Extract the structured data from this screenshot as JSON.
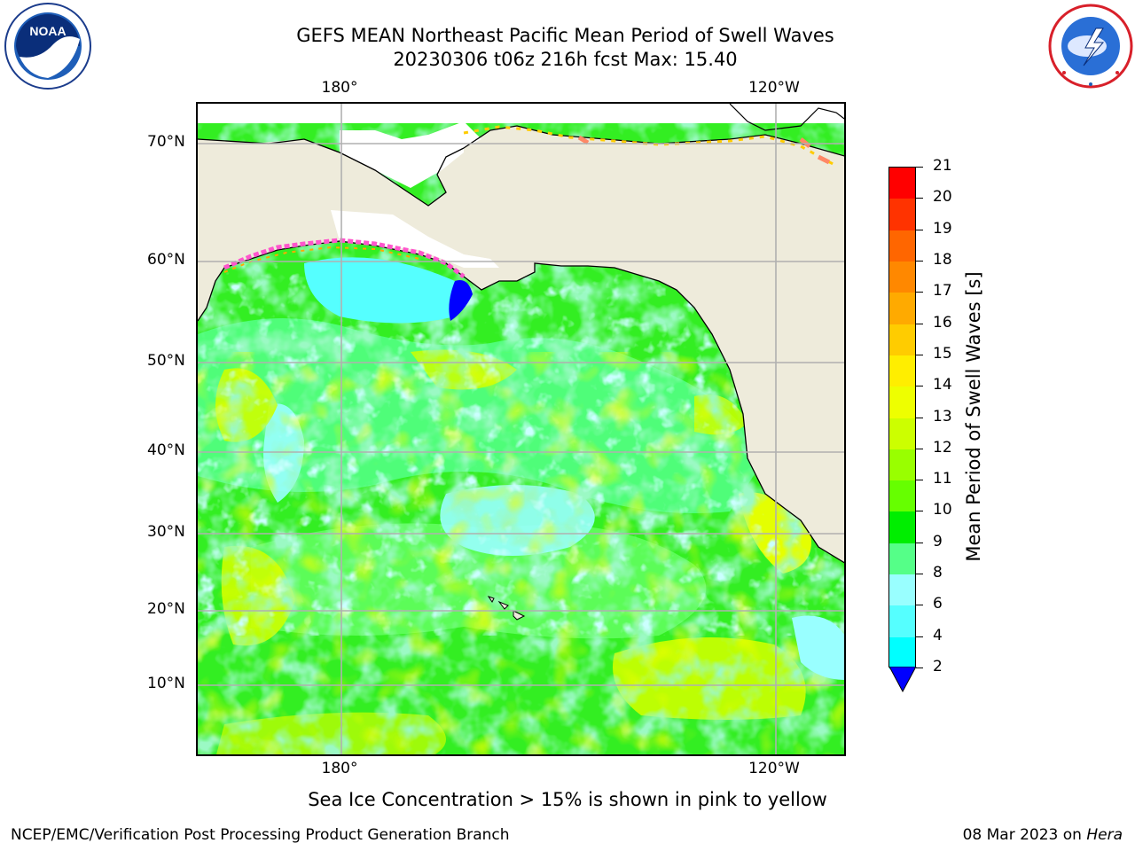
{
  "header": {
    "title_line1": "GEFS MEAN Northeast Pacific Mean Period of Swell Waves",
    "title_line2": "20230306 t06z 216h fcst   Max: 15.40"
  },
  "logos": {
    "left": "noaa-logo",
    "right": "nws-logo",
    "left_text": "NOAA",
    "right_text": "NATIONAL WEATHER SERVICE"
  },
  "map": {
    "lon_labels_top": [
      "180°",
      "120°W"
    ],
    "lon_labels_bottom": [
      "180°",
      "120°W"
    ],
    "lat_labels": [
      "70°N",
      "60°N",
      "50°N",
      "40°N",
      "30°N",
      "20°N",
      "10°N"
    ],
    "colors": {
      "land": "#eeebdb",
      "grid": "#b0b0b0",
      "coast": "#000000"
    }
  },
  "colorbar": {
    "title": "Mean Period of Swell Waves [s]",
    "ticks": [
      "21",
      "20",
      "19",
      "18",
      "17",
      "16",
      "15",
      "14",
      "13",
      "12",
      "11",
      "10",
      "9",
      "8",
      "6",
      "4",
      "2"
    ],
    "colors": [
      "#ff0000",
      "#ff3300",
      "#ff6600",
      "#ff8800",
      "#ffaa00",
      "#ffcc00",
      "#ffee00",
      "#eeff00",
      "#ccff00",
      "#99ff00",
      "#66ff00",
      "#00ee00",
      "#55ff88",
      "#99ffff",
      "#55ffff",
      "#00ffff",
      "#00bbff",
      "#0066ff"
    ],
    "under_color": "#0000ff"
  },
  "footer": {
    "note": "Sea Ice Concentration > 15% is shown in pink to yellow",
    "credit": "NCEP/EMC/Verification Post Processing Product Generation Branch",
    "date": "08 Mar 2023 on ",
    "host": "Hera"
  }
}
